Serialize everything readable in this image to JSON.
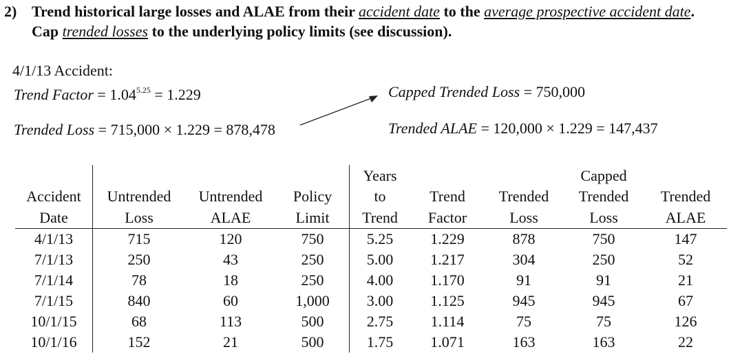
{
  "heading": {
    "number": "2)",
    "line1_a": "Trend historical large losses and ALAE from their ",
    "line1_link1": "accident date",
    "line1_b": " to the ",
    "line1_link2": "average prospective accident date",
    "line1_c": ".",
    "line2_a": "Cap ",
    "line2_link": "trended losses",
    "line2_b": " to the underlying policy limits (see discussion)."
  },
  "example": {
    "title": "4/1/13 Accident:",
    "trend_factor_label": "Trend Factor",
    "trend_factor_base": " = 1.04",
    "trend_factor_exp": "5.25",
    "trend_factor_result": " = 1.229",
    "trended_loss_label": "Trended Loss",
    "trended_loss_expr": " = 715,000 × 1.229 = 878,478",
    "capped_label": "Capped Trended Loss",
    "capped_expr": " = 750,000",
    "trended_alae_label": "Trended ALAE",
    "trended_alae_expr": " = 120,000 × 1.229 = 147,437"
  },
  "table": {
    "headers": [
      [
        "Accident",
        "Date"
      ],
      [
        "Untrended",
        "Loss"
      ],
      [
        "Untrended",
        "ALAE"
      ],
      [
        "Policy",
        "Limit"
      ],
      [
        "Years",
        "to",
        "Trend"
      ],
      [
        "Trend",
        "Factor"
      ],
      [
        "Trended",
        "Loss"
      ],
      [
        "Capped",
        "Trended",
        "Loss"
      ],
      [
        "Trended",
        "ALAE"
      ]
    ],
    "rows": [
      [
        "4/1/13",
        "715",
        "120",
        "750",
        "5.25",
        "1.229",
        "878",
        "750",
        "147"
      ],
      [
        "7/1/13",
        "250",
        "43",
        "250",
        "5.00",
        "1.217",
        "304",
        "250",
        "52"
      ],
      [
        "7/1/14",
        "78",
        "18",
        "250",
        "4.00",
        "1.170",
        "91",
        "91",
        "21"
      ],
      [
        "7/1/15",
        "840",
        "60",
        "1,000",
        "3.00",
        "1.125",
        "945",
        "945",
        "67"
      ],
      [
        "10/1/15",
        "68",
        "113",
        "500",
        "2.75",
        "1.114",
        "75",
        "75",
        "126"
      ],
      [
        "10/1/16",
        "152",
        "21",
        "500",
        "1.75",
        "1.071",
        "163",
        "163",
        "22"
      ]
    ]
  }
}
